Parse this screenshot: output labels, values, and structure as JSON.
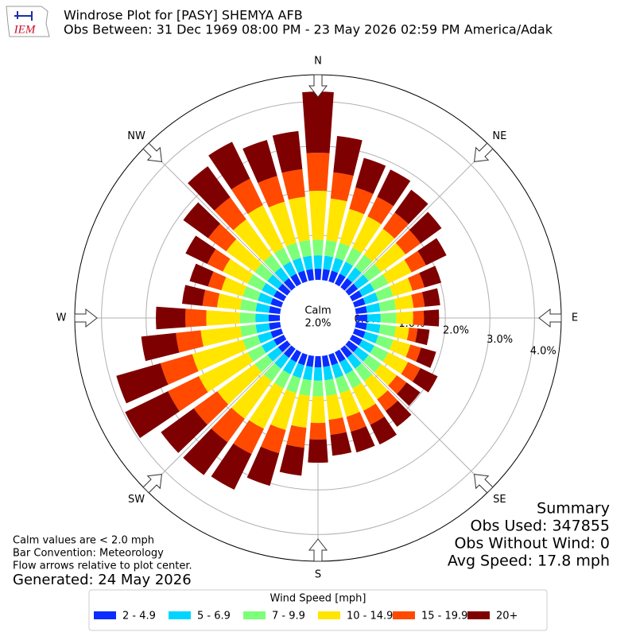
{
  "chart_data": {
    "type": "windrose",
    "logo": "IEM",
    "title": "Windrose Plot for [PASY] SHEMYA AFB",
    "subtitle": "Obs Between: 31 Dec 1969 08:00 PM - 23 May 2026 02:59 PM America/Adak",
    "calm_label": "Calm",
    "calm_value": "2.0%",
    "x": [
      0,
      10,
      20,
      30,
      40,
      50,
      60,
      70,
      80,
      90,
      100,
      110,
      120,
      130,
      140,
      150,
      160,
      170,
      180,
      190,
      200,
      210,
      220,
      230,
      240,
      250,
      260,
      270,
      280,
      290,
      300,
      310,
      320,
      330,
      340,
      350
    ],
    "xticks": [
      {
        "value": 0,
        "label": "N"
      },
      {
        "value": 45,
        "label": "NE"
      },
      {
        "value": 90,
        "label": "E"
      },
      {
        "value": 135,
        "label": "SE"
      },
      {
        "value": 180,
        "label": "S"
      },
      {
        "value": 225,
        "label": "SW"
      },
      {
        "value": 270,
        "label": "W"
      },
      {
        "value": 315,
        "label": "NW"
      }
    ],
    "ylim": [
      0,
      4.6
    ],
    "yticks": [
      {
        "value": 0,
        "label": "0.0%"
      },
      {
        "value": 1,
        "label": "1.0%"
      },
      {
        "value": 2,
        "label": "2.0%"
      },
      {
        "value": 3,
        "label": "3.0%"
      },
      {
        "value": 4,
        "label": "4.0%"
      }
    ],
    "grid": true,
    "legend_title": "Wind Speed [mph]",
    "series": [
      {
        "name": "2 - 4.9",
        "color": "#0a2cff",
        "values": [
          0.25,
          0.25,
          0.25,
          0.25,
          0.25,
          0.25,
          0.25,
          0.25,
          0.25,
          0.25,
          0.25,
          0.25,
          0.25,
          0.25,
          0.25,
          0.25,
          0.25,
          0.25,
          0.25,
          0.25,
          0.25,
          0.25,
          0.25,
          0.25,
          0.25,
          0.25,
          0.25,
          0.25,
          0.25,
          0.25,
          0.25,
          0.25,
          0.25,
          0.25,
          0.25,
          0.25
        ]
      },
      {
        "name": "5 - 6.9",
        "color": "#00d5ff",
        "values": [
          0.3,
          0.3,
          0.3,
          0.3,
          0.3,
          0.3,
          0.3,
          0.3,
          0.3,
          0.3,
          0.3,
          0.3,
          0.3,
          0.3,
          0.3,
          0.3,
          0.3,
          0.3,
          0.3,
          0.3,
          0.3,
          0.3,
          0.3,
          0.3,
          0.3,
          0.3,
          0.3,
          0.3,
          0.3,
          0.3,
          0.3,
          0.3,
          0.3,
          0.3,
          0.3,
          0.3
        ]
      },
      {
        "name": "7 - 9.9",
        "color": "#7dff7a",
        "values": [
          0.35,
          0.35,
          0.35,
          0.35,
          0.35,
          0.35,
          0.35,
          0.35,
          0.35,
          0.35,
          0.35,
          0.35,
          0.35,
          0.35,
          0.35,
          0.35,
          0.35,
          0.35,
          0.35,
          0.35,
          0.35,
          0.35,
          0.35,
          0.35,
          0.35,
          0.35,
          0.35,
          0.35,
          0.35,
          0.35,
          0.35,
          0.35,
          0.35,
          0.35,
          0.35,
          0.35
        ]
      },
      {
        "name": "10 - 14.9",
        "color": "#ffe500",
        "values": [
          1.1,
          0.94,
          0.79,
          0.78,
          0.72,
          0.67,
          0.58,
          0.45,
          0.4,
          0.38,
          0.3,
          0.4,
          0.49,
          0.43,
          0.5,
          0.56,
          0.55,
          0.54,
          0.6,
          0.72,
          0.86,
          1.01,
          1.04,
          1.04,
          1.22,
          1.18,
          0.89,
          0.75,
          0.52,
          0.5,
          0.62,
          0.79,
          0.98,
          1.06,
          0.96,
          0.98
        ]
      },
      {
        "name": "15 - 19.9",
        "color": "#ff4a00",
        "values": [
          0.85,
          0.59,
          0.5,
          0.49,
          0.45,
          0.42,
          0.36,
          0.28,
          0.25,
          0.24,
          0.19,
          0.25,
          0.31,
          0.27,
          0.32,
          0.35,
          0.35,
          0.34,
          0.37,
          0.45,
          0.54,
          0.63,
          0.65,
          0.65,
          0.77,
          0.74,
          0.56,
          0.47,
          0.33,
          0.31,
          0.39,
          0.5,
          0.61,
          0.66,
          0.6,
          0.62
        ]
      },
      {
        "name": "20+",
        "color": "#7f0000",
        "values": [
          1.37,
          0.82,
          0.69,
          0.68,
          0.63,
          0.58,
          0.51,
          0.39,
          0.35,
          0.34,
          0.27,
          0.35,
          0.43,
          0.38,
          0.44,
          0.49,
          0.48,
          0.47,
          0.52,
          0.63,
          0.76,
          0.89,
          0.91,
          0.91,
          1.07,
          1.03,
          0.78,
          0.66,
          0.46,
          0.43,
          0.54,
          0.69,
          0.86,
          0.92,
          0.84,
          0.86
        ]
      }
    ],
    "notes": [
      "Calm values are < 2.0 mph",
      "Bar Convention: Meteorology",
      "Flow arrows relative to plot center."
    ],
    "generated": "Generated: 24 May 2026",
    "summary": [
      "Summary",
      "Obs Used: 347855",
      "Obs Without Wind: 0",
      "Avg Speed: 17.8 mph"
    ]
  }
}
